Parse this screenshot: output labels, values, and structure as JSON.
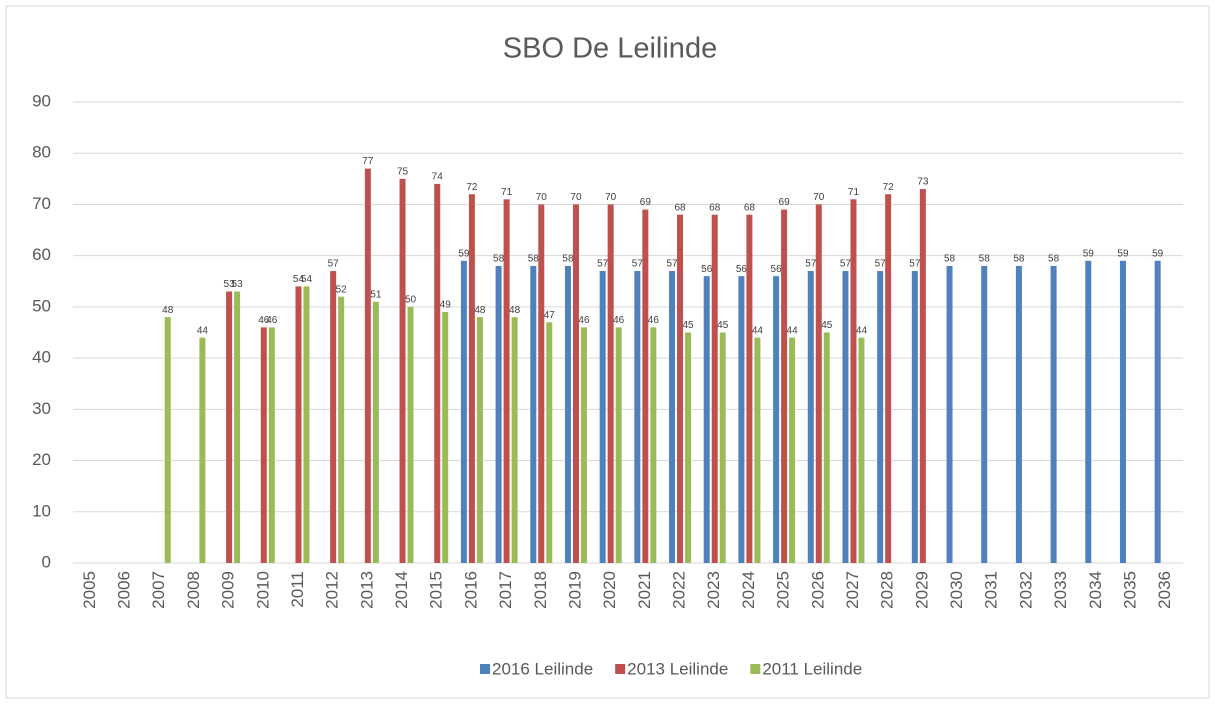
{
  "chart_data": {
    "type": "bar",
    "title": "SBO De Leilinde",
    "categories": [
      "2005",
      "2006",
      "2007",
      "2008",
      "2009",
      "2010",
      "2011",
      "2012",
      "2013",
      "2014",
      "2015",
      "2016",
      "2017",
      "2018",
      "2019",
      "2020",
      "2021",
      "2022",
      "2023",
      "2024",
      "2025",
      "2026",
      "2027",
      "2028",
      "2029",
      "2030",
      "2031",
      "2032",
      "2033",
      "2034",
      "2035",
      "2036"
    ],
    "series": [
      {
        "name": "2016 Leilinde",
        "color": "#4f81bd",
        "values": [
          null,
          null,
          null,
          null,
          null,
          null,
          null,
          null,
          null,
          null,
          null,
          59,
          58,
          58,
          58,
          57,
          57,
          57,
          56,
          56,
          56,
          57,
          57,
          57,
          57,
          58,
          58,
          58,
          58,
          59,
          59,
          59
        ]
      },
      {
        "name": "2013 Leilinde",
        "color": "#c0504d",
        "values": [
          null,
          null,
          null,
          null,
          53,
          46,
          54,
          57,
          77,
          75,
          74,
          72,
          71,
          70,
          70,
          70,
          69,
          68,
          68,
          68,
          69,
          70,
          71,
          72,
          73,
          null,
          null,
          null,
          null,
          null,
          null,
          null
        ]
      },
      {
        "name": "2011 Leilinde",
        "color": "#9bbb59",
        "values": [
          null,
          null,
          48,
          44,
          53,
          46,
          54,
          52,
          51,
          50,
          49,
          48,
          48,
          47,
          46,
          46,
          46,
          45,
          45,
          44,
          44,
          45,
          44,
          null,
          null,
          null,
          null,
          null,
          null,
          null,
          null,
          null
        ]
      }
    ],
    "ylim": [
      0,
      90
    ],
    "yticks": [
      0,
      10,
      20,
      30,
      40,
      50,
      60,
      70,
      80,
      90
    ],
    "grid": true,
    "legend": "bottom"
  }
}
